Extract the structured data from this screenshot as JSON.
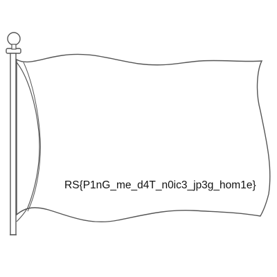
{
  "flag": {
    "text": "RS{P1nG_me_d4T_n0ic3_jp3g_hom1e}",
    "colors": {
      "outline": "#555555",
      "fill": "#ffffff",
      "text": "#111111"
    }
  }
}
